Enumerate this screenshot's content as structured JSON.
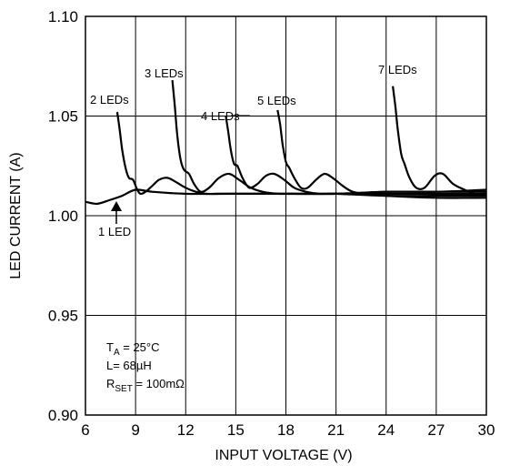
{
  "chart_data": {
    "type": "line",
    "xlabel": "INPUT VOLTAGE (V)",
    "ylabel": "LED CURRENT (A)",
    "xlim": [
      6,
      30
    ],
    "ylim": [
      0.9,
      1.1
    ],
    "x_ticks": [
      "6",
      "9",
      "12",
      "15",
      "18",
      "21",
      "24",
      "27",
      "30"
    ],
    "y_ticks": [
      "0.90",
      "0.95",
      "1.00",
      "1.05",
      "1.10"
    ],
    "grid": true,
    "conditions": {
      "t_main": "T",
      "t_sub": "A",
      "t_rest": " = 25°C",
      "l": "L= 68µH",
      "r_main": "R",
      "r_sub": "SET",
      "r_rest": " = 100mΩ"
    },
    "series": [
      {
        "name": "1 LED",
        "x": [
          6,
          6.7,
          7.5,
          8.2,
          9.0,
          10.0,
          12.0,
          15.0,
          18.0,
          21.0,
          24.0,
          27.0,
          30.0
        ],
        "y": [
          1.007,
          1.006,
          1.008,
          1.01,
          1.013,
          1.012,
          1.011,
          1.011,
          1.011,
          1.011,
          1.012,
          1.012,
          1.013
        ]
      },
      {
        "name": "2 LEDs",
        "x": [
          7.9,
          8.05,
          8.2,
          8.4,
          8.6,
          8.85,
          9.1,
          9.3,
          9.6,
          10.0,
          10.4,
          10.9,
          11.4,
          12.0,
          12.6,
          13.2,
          14.0,
          15.0,
          18.0,
          21.0,
          24.0,
          27.0,
          30.0
        ],
        "y": [
          1.052,
          1.043,
          1.033,
          1.024,
          1.019,
          1.018,
          1.013,
          1.011,
          1.012,
          1.015,
          1.018,
          1.019,
          1.017,
          1.014,
          1.012,
          1.011,
          1.011,
          1.011,
          1.011,
          1.011,
          1.012,
          1.012,
          1.012
        ]
      },
      {
        "name": "3 LEDs",
        "x": [
          11.2,
          11.35,
          11.5,
          11.7,
          11.9,
          12.2,
          12.5,
          12.9,
          13.4,
          14.0,
          14.6,
          15.2,
          15.9,
          16.6,
          17.5,
          18.5,
          21.0,
          24.0,
          27.0,
          30.0
        ],
        "y": [
          1.068,
          1.055,
          1.04,
          1.028,
          1.023,
          1.021,
          1.016,
          1.012,
          1.014,
          1.019,
          1.021,
          1.018,
          1.014,
          1.012,
          1.011,
          1.011,
          1.011,
          1.011,
          1.011,
          1.011
        ]
      },
      {
        "name": "4 LEDs",
        "x": [
          14.4,
          14.55,
          14.7,
          14.9,
          15.1,
          15.4,
          15.8,
          16.3,
          16.8,
          17.3,
          17.9,
          18.5,
          19.2,
          20.0,
          21.0,
          24.0,
          27.0,
          30.0
        ],
        "y": [
          1.05,
          1.042,
          1.033,
          1.026,
          1.025,
          1.019,
          1.014,
          1.016,
          1.02,
          1.021,
          1.018,
          1.014,
          1.012,
          1.011,
          1.011,
          1.01,
          1.01,
          1.01
        ]
      },
      {
        "name": "5 LEDs",
        "x": [
          17.5,
          17.65,
          17.8,
          18.0,
          18.2,
          18.5,
          18.9,
          19.3,
          19.8,
          20.3,
          20.8,
          21.4,
          22.0,
          22.8,
          24.0,
          27.0,
          30.0
        ],
        "y": [
          1.053,
          1.046,
          1.036,
          1.027,
          1.024,
          1.019,
          1.014,
          1.014,
          1.018,
          1.021,
          1.019,
          1.015,
          1.012,
          1.011,
          1.01,
          1.009,
          1.009
        ]
      },
      {
        "name": "7 LEDs",
        "x": [
          24.4,
          24.55,
          24.7,
          24.9,
          25.1,
          25.4,
          25.8,
          26.3,
          26.9,
          27.4,
          28.0,
          28.7,
          29.3,
          30.0
        ],
        "y": [
          1.065,
          1.055,
          1.043,
          1.031,
          1.026,
          1.019,
          1.014,
          1.014,
          1.02,
          1.021,
          1.016,
          1.013,
          1.011,
          1.011
        ]
      }
    ],
    "annotations": [
      {
        "text": "2 LEDs",
        "series": "2 LEDs"
      },
      {
        "text": "3 LEDs",
        "series": "3 LEDs"
      },
      {
        "text": "4 LEDs",
        "series": "4 LEDs"
      },
      {
        "text": "5 LEDs",
        "series": "5 LEDs"
      },
      {
        "text": "7 LEDs",
        "series": "7 LEDs"
      },
      {
        "text": "1 LED",
        "series": "1 LED"
      }
    ]
  }
}
